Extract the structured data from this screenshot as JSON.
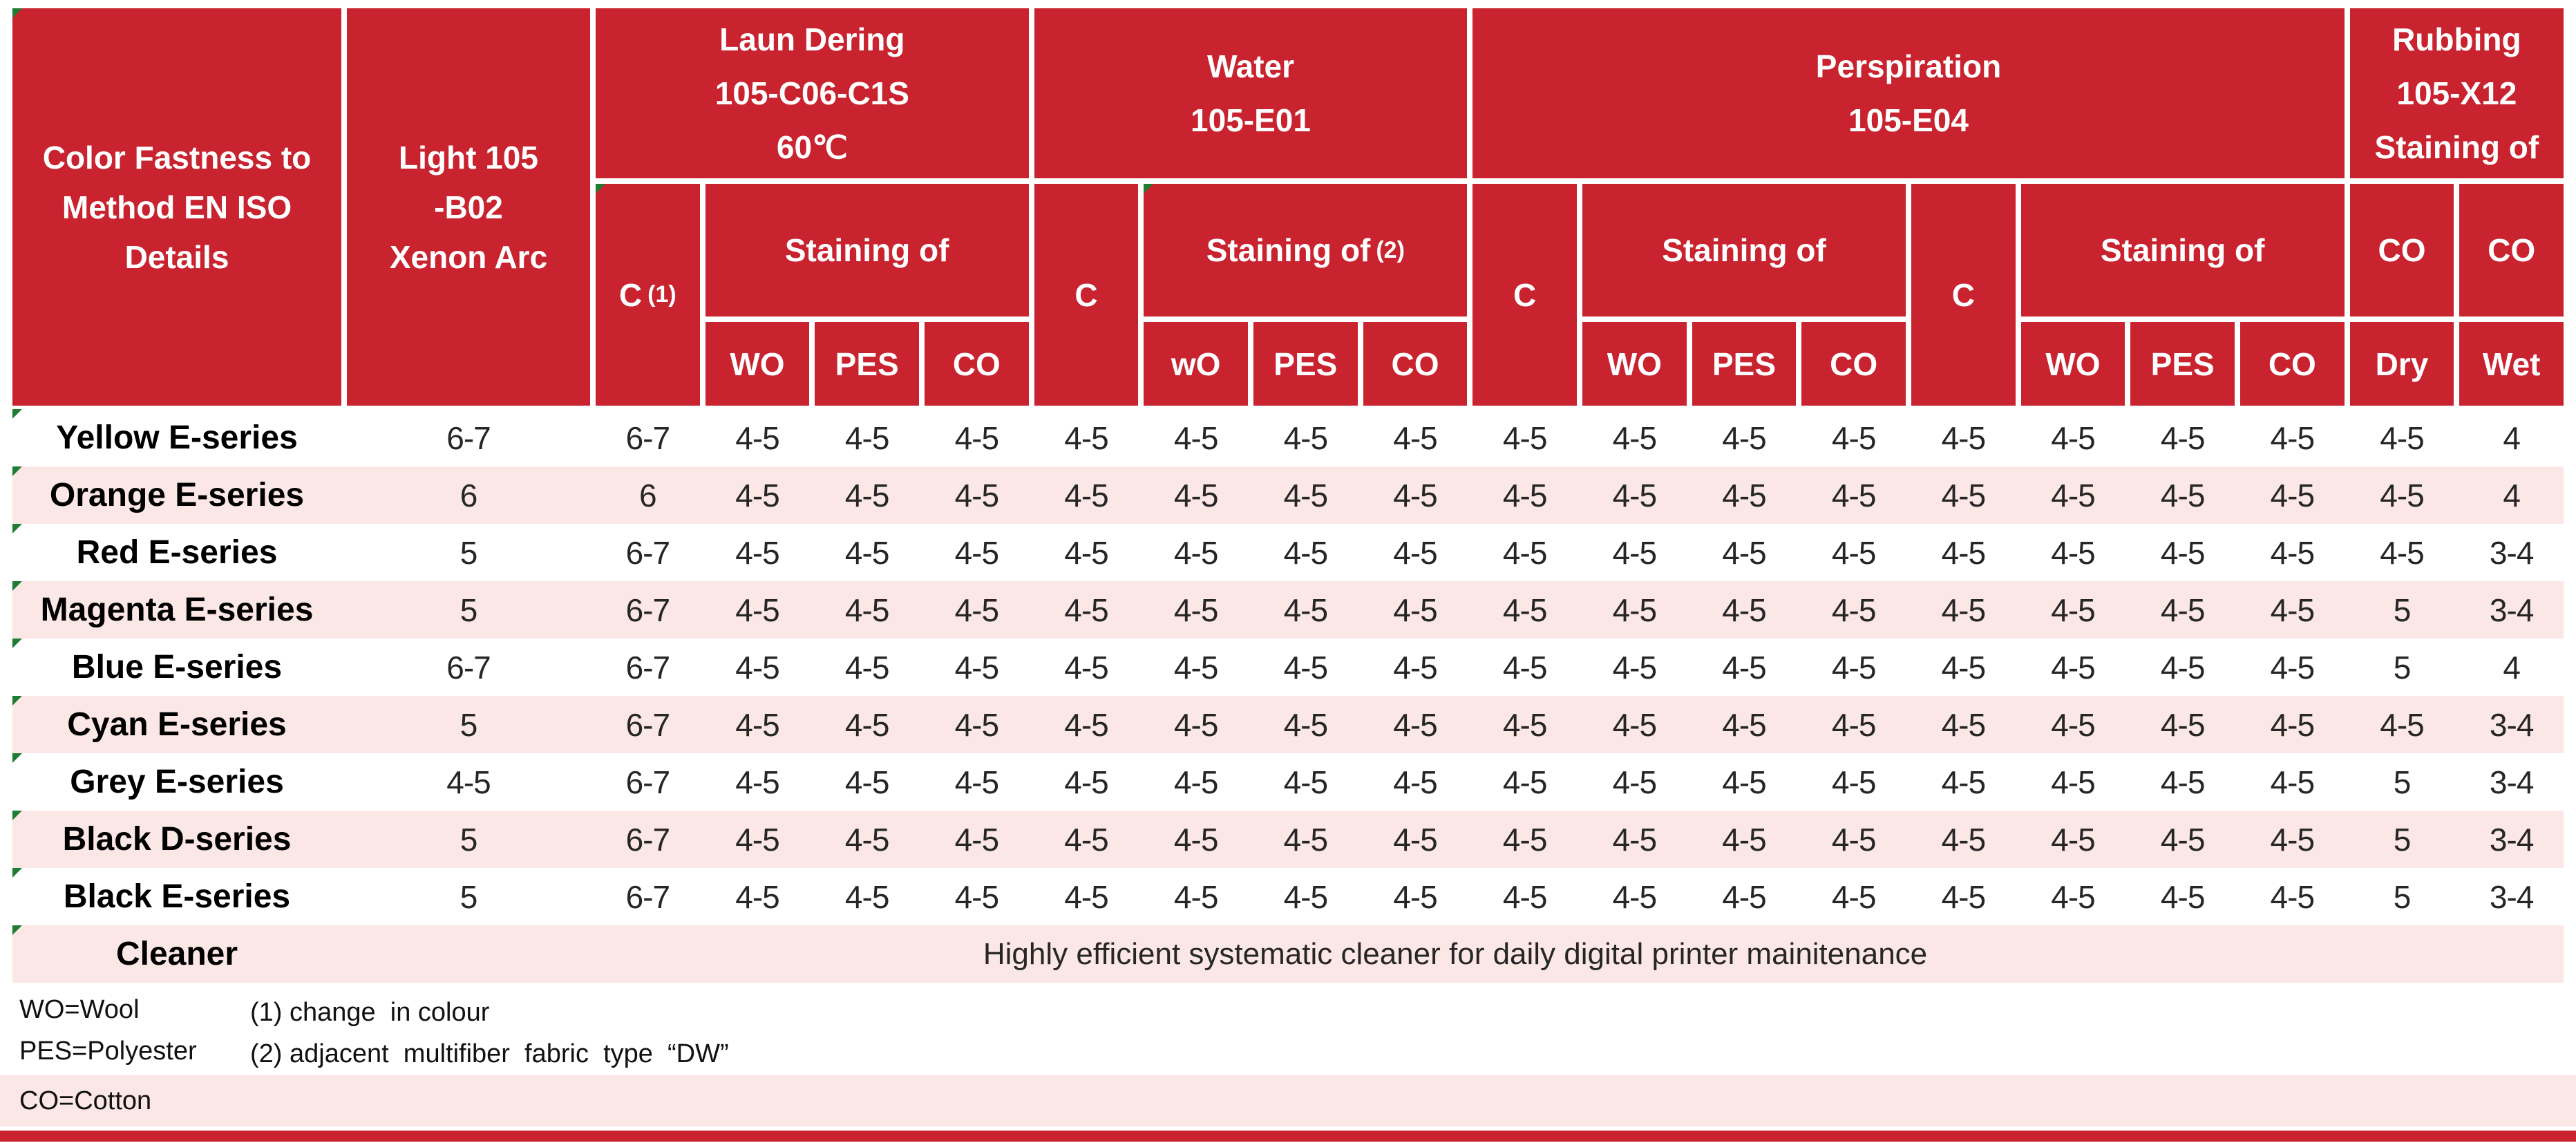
{
  "colors": {
    "header_red": "#C8232F",
    "stripe_pink": "#FBE7E5",
    "flag_green": "#1E7D32",
    "bottom_bar_red": "#C8232F"
  },
  "header": {
    "col1_lines": [
      "Color Fastness to",
      "Method EN ISO",
      "Details"
    ],
    "col2_lines": [
      "Light 105",
      "-B02",
      "Xenon Arc"
    ],
    "laundering": {
      "l1": "Laun Dering",
      "l2": "105-C06-C1S",
      "l3": "60℃",
      "c": "C",
      "c_note": "(1)",
      "staining": "Staining of",
      "wo": "WO",
      "pes": "PES",
      "co": "CO"
    },
    "water": {
      "l1": "Water",
      "l2": "105-E01",
      "c": "C",
      "staining": "Staining of",
      "staining_note": "(2)",
      "wo": "wO",
      "pes": "PES",
      "co": "CO"
    },
    "perspiration": {
      "l1": "Perspiration",
      "l2": "105-E04",
      "c1": "C",
      "staining1": "Staining of",
      "wo1": "WO",
      "pes1": "PES",
      "co1": "CO",
      "c2": "C",
      "staining2": "Staining of",
      "wo2": "WO",
      "pes2": "PES",
      "co2": "CO"
    },
    "rubbing": {
      "l1": "Rubbing",
      "l2": "105-X12",
      "l3": "Staining of",
      "co_dry": "CO",
      "co_wet": "CO",
      "dry": "Dry",
      "wet": "Wet"
    }
  },
  "rows": [
    {
      "label": "Yellow E-series",
      "values": [
        "6-7",
        "6-7",
        "4-5",
        "4-5",
        "4-5",
        "4-5",
        "4-5",
        "4-5",
        "4-5",
        "4-5",
        "4-5",
        "4-5",
        "4-5",
        "4-5",
        "4-5",
        "4-5",
        "4-5",
        "4-5",
        "4"
      ]
    },
    {
      "label": "Orange E-series",
      "values": [
        "6",
        "6",
        "4-5",
        "4-5",
        "4-5",
        "4-5",
        "4-5",
        "4-5",
        "4-5",
        "4-5",
        "4-5",
        "4-5",
        "4-5",
        "4-5",
        "4-5",
        "4-5",
        "4-5",
        "4-5",
        "4"
      ]
    },
    {
      "label": "Red E-series",
      "values": [
        "5",
        "6-7",
        "4-5",
        "4-5",
        "4-5",
        "4-5",
        "4-5",
        "4-5",
        "4-5",
        "4-5",
        "4-5",
        "4-5",
        "4-5",
        "4-5",
        "4-5",
        "4-5",
        "4-5",
        "4-5",
        "3-4"
      ]
    },
    {
      "label": "Magenta E-series",
      "values": [
        "5",
        "6-7",
        "4-5",
        "4-5",
        "4-5",
        "4-5",
        "4-5",
        "4-5",
        "4-5",
        "4-5",
        "4-5",
        "4-5",
        "4-5",
        "4-5",
        "4-5",
        "4-5",
        "4-5",
        "5",
        "3-4"
      ]
    },
    {
      "label": "Blue E-series",
      "values": [
        "6-7",
        "6-7",
        "4-5",
        "4-5",
        "4-5",
        "4-5",
        "4-5",
        "4-5",
        "4-5",
        "4-5",
        "4-5",
        "4-5",
        "4-5",
        "4-5",
        "4-5",
        "4-5",
        "4-5",
        "5",
        "4"
      ]
    },
    {
      "label": "Cyan E-series",
      "values": [
        "5",
        "6-7",
        "4-5",
        "4-5",
        "4-5",
        "4-5",
        "4-5",
        "4-5",
        "4-5",
        "4-5",
        "4-5",
        "4-5",
        "4-5",
        "4-5",
        "4-5",
        "4-5",
        "4-5",
        "4-5",
        "3-4"
      ]
    },
    {
      "label": "Grey E-series",
      "values": [
        "4-5",
        "6-7",
        "4-5",
        "4-5",
        "4-5",
        "4-5",
        "4-5",
        "4-5",
        "4-5",
        "4-5",
        "4-5",
        "4-5",
        "4-5",
        "4-5",
        "4-5",
        "4-5",
        "4-5",
        "5",
        "3-4"
      ]
    },
    {
      "label": "Black D-series",
      "values": [
        "5",
        "6-7",
        "4-5",
        "4-5",
        "4-5",
        "4-5",
        "4-5",
        "4-5",
        "4-5",
        "4-5",
        "4-5",
        "4-5",
        "4-5",
        "4-5",
        "4-5",
        "4-5",
        "4-5",
        "5",
        "3-4"
      ]
    },
    {
      "label": "Black E-series",
      "values": [
        "5",
        "6-7",
        "4-5",
        "4-5",
        "4-5",
        "4-5",
        "4-5",
        "4-5",
        "4-5",
        "4-5",
        "4-5",
        "4-5",
        "4-5",
        "4-5",
        "4-5",
        "4-5",
        "4-5",
        "5",
        "3-4"
      ]
    }
  ],
  "cleaner": {
    "label": "Cleaner",
    "text": "Highly efficient systematic cleaner for daily digital printer mainitenance"
  },
  "footnotes": {
    "wo": "WO=Wool",
    "pes": "PES=Polyester",
    "co": "CO=Cotton",
    "note1": "(1) change  in colour",
    "note2": "(2) adjacent  multifiber  fabric  type  “DW”"
  }
}
